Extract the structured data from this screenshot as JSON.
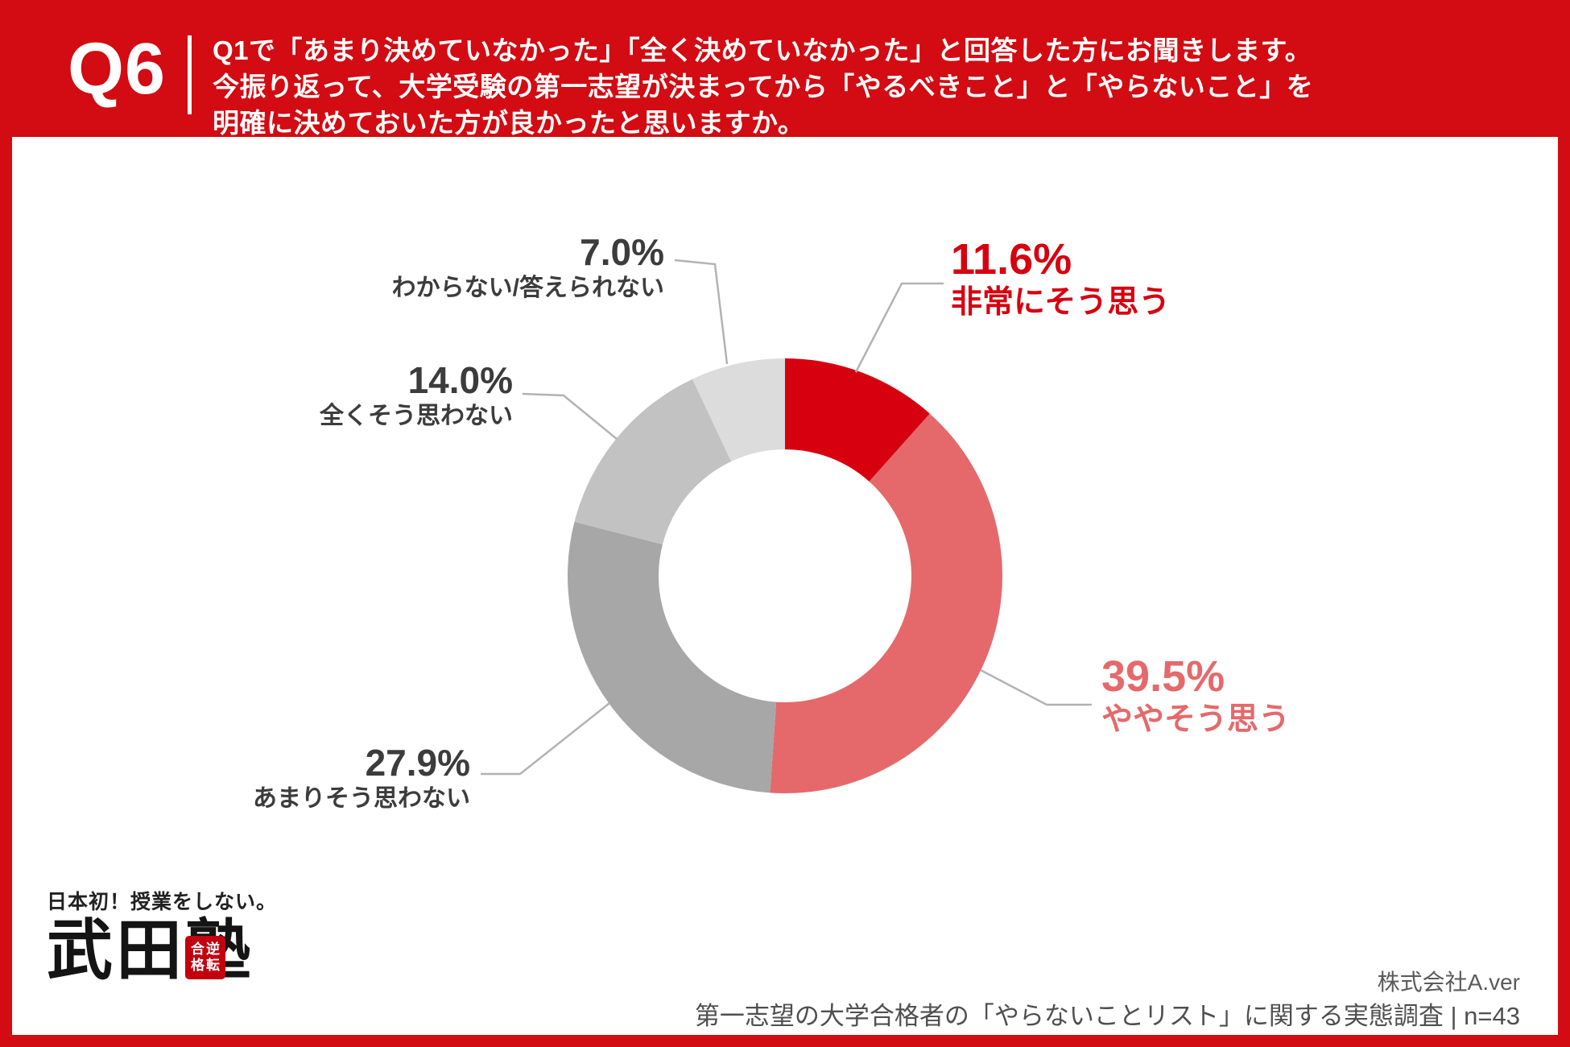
{
  "header": {
    "question_number": "Q6",
    "line1": "Q1で「あまり決めていなかった」「全く決めていなかった」と回答した方にお聞きします。",
    "line2": "今振り返って、大学受験の第一志望が決まってから「やるべきこと」と「やらないこと」を",
    "line3": "明確に決めておいた方が良かったと思いますか。"
  },
  "chart_data": {
    "type": "pie",
    "variant": "donut",
    "start_angle_deg": 0,
    "direction": "clockwise",
    "hole_ratio": 0.58,
    "legend_position": "callout-labels",
    "segments": [
      {
        "label": "非常にそう思う",
        "value": 11.6,
        "pct_label": "11.6%",
        "color": "#d7000f"
      },
      {
        "label": "ややそう思う",
        "value": 39.5,
        "pct_label": "39.5%",
        "color": "#e5696b"
      },
      {
        "label": "あまりそう思わない",
        "value": 27.9,
        "pct_label": "27.9%",
        "color": "#a7a7a7"
      },
      {
        "label": "全くそう思わない",
        "value": 14.0,
        "pct_label": "14.0%",
        "color": "#c2c2c2"
      },
      {
        "label": "わからない/答えられない",
        "value": 7.0,
        "pct_label": "7.0%",
        "color": "#dcdcdc"
      }
    ]
  },
  "logo": {
    "tagline": "日本初！授業をしない。",
    "name": "武田塾",
    "seal_col_right": "逆転",
    "seal_col_left": "合格"
  },
  "footer": {
    "company": "株式会社A.ver",
    "survey": "第一志望の大学合格者の「やらないことリスト」に関する実態調査 | n=43"
  },
  "colors": {
    "band_red": "#d30b12",
    "accent_red": "#d7000f",
    "accent_salmon": "#e5696b",
    "label_dark": "#3c3c3c",
    "connector_gray": "#b3b3b3",
    "panel_white": "#ffffff"
  }
}
